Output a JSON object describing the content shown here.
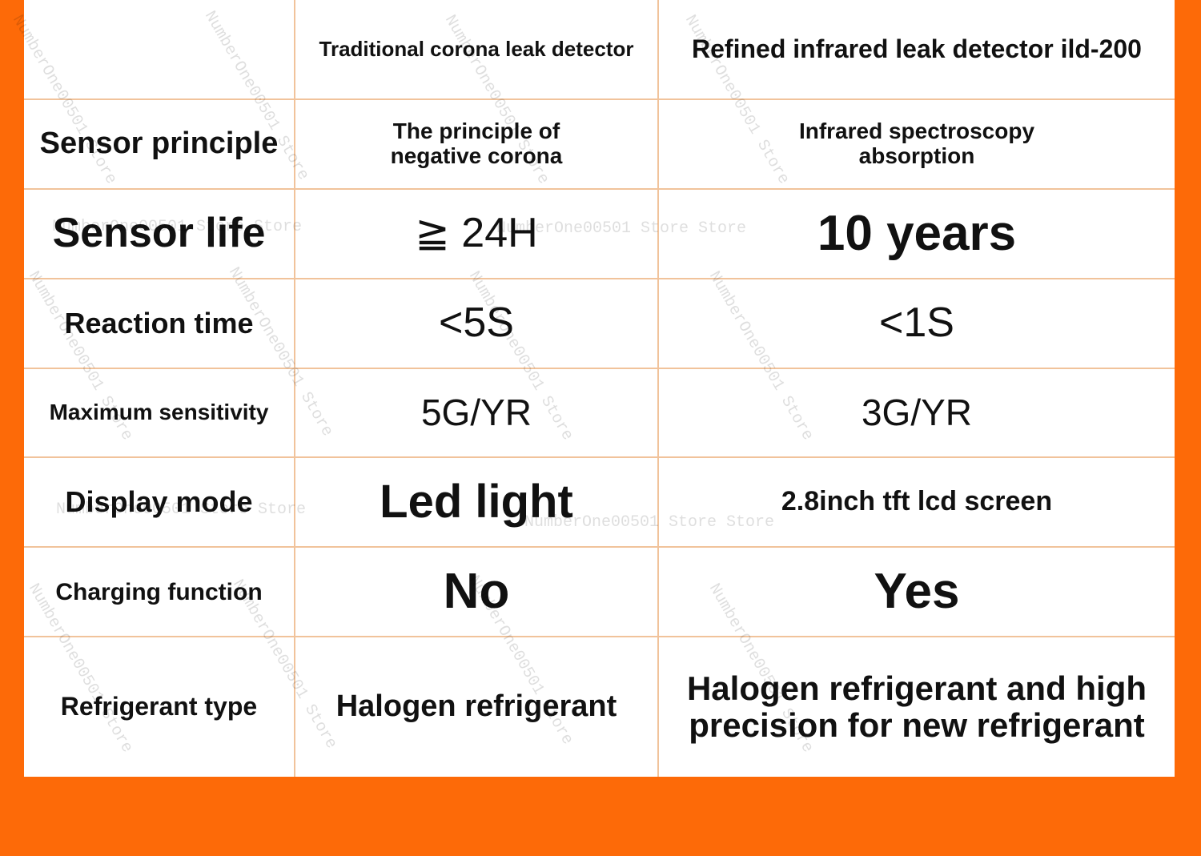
{
  "table": {
    "header": [
      "Traditional corona leak detector",
      "Refined infrared leak detector ild-200"
    ],
    "rows": [
      [
        "Sensor principle",
        "The principle of negative corona",
        "Infrared spectroscopy absorption"
      ],
      [
        "Sensor life",
        "≧ 24H",
        "10 years"
      ],
      [
        "Reaction time",
        "<5S",
        "<1S"
      ],
      [
        "Maximum sensitivity",
        "5G/YR",
        "3G/YR"
      ],
      [
        "Display mode",
        "Led light",
        "2.8inch tft lcd screen"
      ],
      [
        "Charging function",
        "No",
        "Yes"
      ],
      [
        "Refrigerant type",
        "Halogen refrigerant",
        "Halogen refrigerant and high precision for new refrigerant"
      ]
    ]
  },
  "watermarks": [
    "NumberOne00501 Store",
    "NumberOne00501 Store Store"
  ]
}
